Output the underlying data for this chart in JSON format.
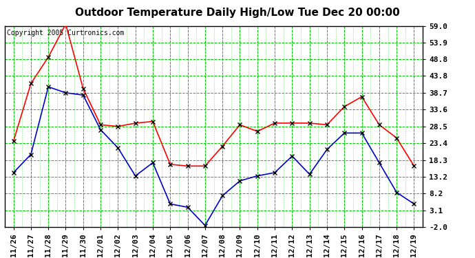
{
  "title": "Outdoor Temperature Daily High/Low Tue Dec 20 00:00",
  "copyright": "Copyright 2005 Curtronics.com",
  "x_labels": [
    "11/26",
    "11/27",
    "11/28",
    "11/29",
    "11/30",
    "12/01",
    "12/02",
    "12/03",
    "12/04",
    "12/05",
    "12/06",
    "12/07",
    "12/08",
    "12/09",
    "12/10",
    "12/11",
    "12/12",
    "12/13",
    "12/14",
    "12/15",
    "12/16",
    "12/17",
    "12/18",
    "12/19"
  ],
  "high_values": [
    24.0,
    41.5,
    49.5,
    59.5,
    40.0,
    29.0,
    28.5,
    29.5,
    30.0,
    17.0,
    16.5,
    16.5,
    22.5,
    29.0,
    27.0,
    29.5,
    29.5,
    29.5,
    29.0,
    34.5,
    37.5,
    29.0,
    25.0,
    16.5
  ],
  "low_values": [
    14.5,
    20.0,
    40.5,
    38.7,
    38.0,
    27.5,
    22.0,
    13.5,
    17.5,
    5.0,
    4.0,
    -1.5,
    7.5,
    12.0,
    13.5,
    14.5,
    19.5,
    14.0,
    21.5,
    26.5,
    26.5,
    17.5,
    8.5,
    5.0
  ],
  "high_color": "#ff0000",
  "low_color": "#0000cc",
  "marker_color": "#000000",
  "bg_color": "#ffffff",
  "plot_bg_color": "#ffffff",
  "grid_color": "#00cc00",
  "border_color": "#000000",
  "y_ticks": [
    -2.0,
    3.1,
    8.2,
    13.2,
    18.3,
    23.4,
    28.5,
    33.6,
    38.7,
    43.8,
    48.8,
    53.9,
    59.0
  ],
  "ylim": [
    -2.0,
    59.0
  ],
  "title_fontsize": 11,
  "tick_fontsize": 8,
  "copyright_fontsize": 7
}
